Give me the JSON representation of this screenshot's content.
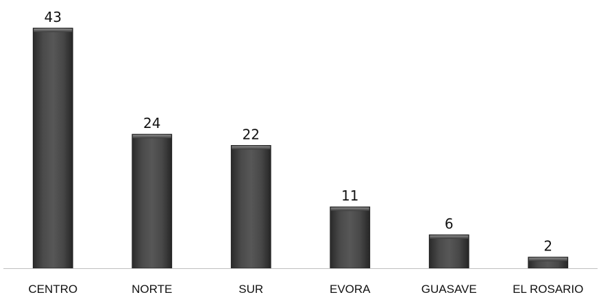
{
  "chart_data": {
    "type": "bar",
    "title": "",
    "xlabel": "",
    "ylabel": "",
    "categories": [
      "CENTRO",
      "NORTE",
      "SUR",
      "EVORA",
      "GUASAVE",
      "EL ROSARIO"
    ],
    "values": [
      43,
      24,
      22,
      11,
      6,
      2
    ],
    "ylim": [
      0,
      43
    ],
    "grid": false,
    "legend": "none",
    "data_labels": true,
    "bar_color": "#3f3f3f",
    "axis_color": "#bfbfbf"
  }
}
